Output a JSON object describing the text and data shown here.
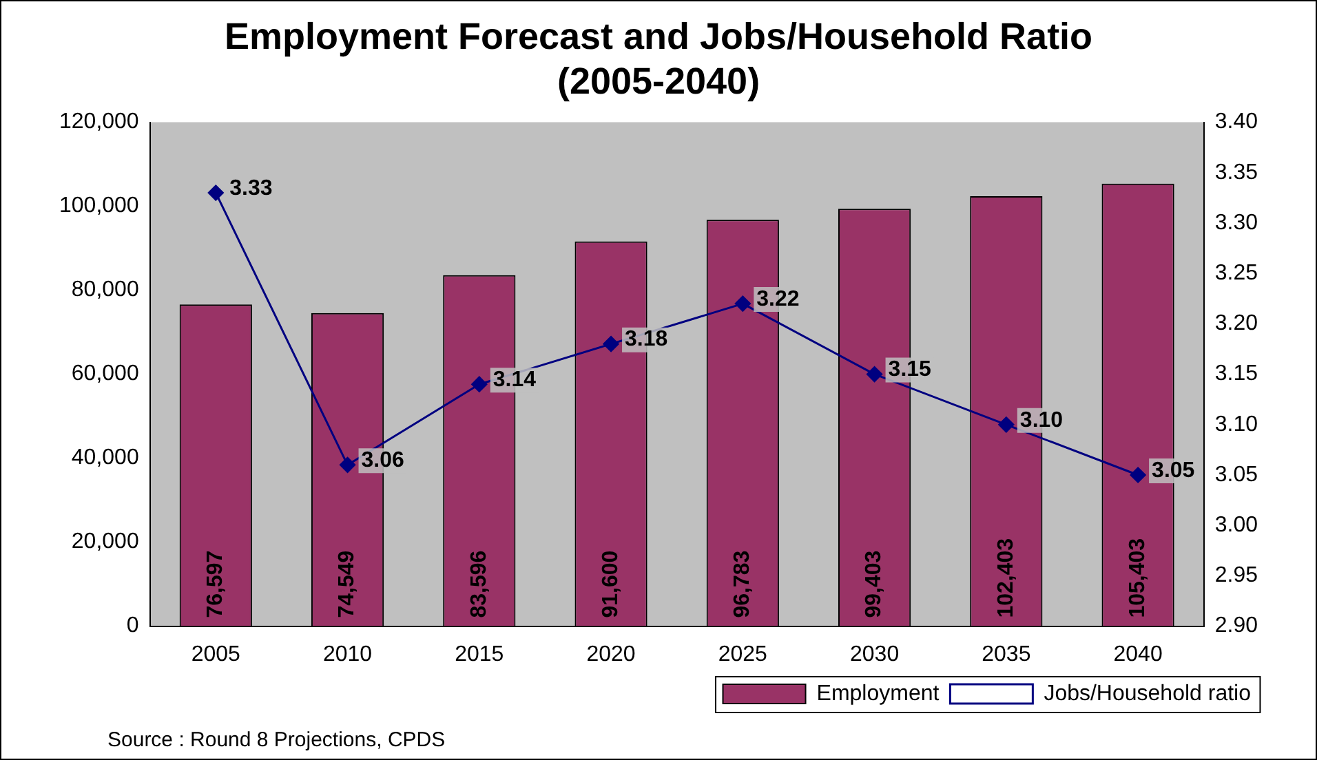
{
  "chart_data": {
    "type": "bar",
    "title": "Employment Forecast and Jobs/Household Ratio (2005-2040)",
    "categories": [
      "2005",
      "2010",
      "2015",
      "2020",
      "2025",
      "2030",
      "2035",
      "2040"
    ],
    "series": [
      {
        "name": "Employment",
        "color": "#993366",
        "values": [
          76597,
          74549,
          83596,
          91600,
          96783,
          99403,
          102403,
          105403
        ],
        "value_labels": [
          "76,597",
          "74,549",
          "83,596",
          "91,600",
          "96,783",
          "99,403",
          "102,403",
          "105,403"
        ]
      },
      {
        "name": "Jobs/Household ratio",
        "type": "line",
        "axis": "y2",
        "color": "#000080",
        "marker": "diamond",
        "line_style": "solid",
        "values": [
          3.33,
          3.06,
          3.14,
          3.18,
          3.22,
          3.15,
          3.1,
          3.05
        ],
        "value_labels": [
          "3.33",
          "3.06",
          "3.14",
          "3.18",
          "3.22",
          "3.15",
          "3.10",
          "3.05"
        ]
      }
    ],
    "ylim": [
      0,
      120000
    ],
    "yticks": [
      {
        "value": 0,
        "label": "0"
      },
      {
        "value": 20000,
        "label": "20,000"
      },
      {
        "value": 40000,
        "label": "40,000"
      },
      {
        "value": 60000,
        "label": "60,000"
      },
      {
        "value": 80000,
        "label": "80,000"
      },
      {
        "value": 100000,
        "label": "100,000"
      },
      {
        "value": 120000,
        "label": "120,000"
      }
    ],
    "y2lim": [
      2.9,
      3.4
    ],
    "y2ticks": [
      {
        "value": 2.9,
        "label": "2.90"
      },
      {
        "value": 2.95,
        "label": "2.95"
      },
      {
        "value": 3.0,
        "label": "3.00"
      },
      {
        "value": 3.05,
        "label": "3.05"
      },
      {
        "value": 3.1,
        "label": "3.10"
      },
      {
        "value": 3.15,
        "label": "3.15"
      },
      {
        "value": 3.2,
        "label": "3.20"
      },
      {
        "value": 3.25,
        "label": "3.25"
      },
      {
        "value": 3.3,
        "label": "3.30"
      },
      {
        "value": 3.35,
        "label": "3.35"
      },
      {
        "value": 3.4,
        "label": "3.40"
      }
    ],
    "grid": false,
    "legend": "bottom right",
    "annotations": [
      "Source : Round 8 Projections, CPDS"
    ]
  }
}
